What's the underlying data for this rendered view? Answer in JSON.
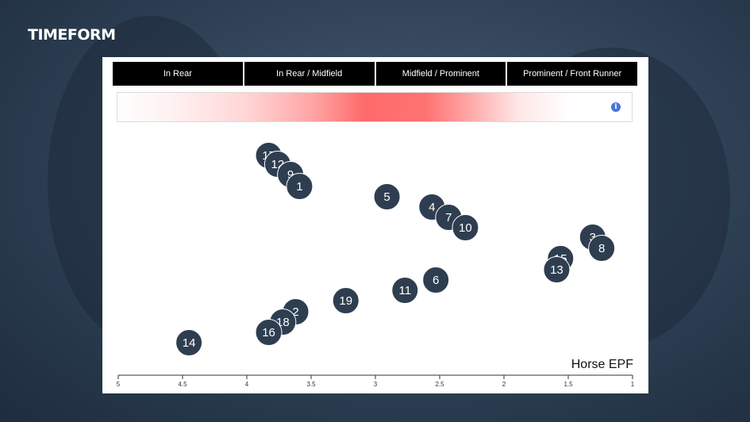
{
  "brand": {
    "logo_text": "TIMEFORM"
  },
  "header": {
    "sections": [
      "In Rear",
      "In Rear / Midfield",
      "Midfield / Prominent",
      "Prominent / Front Runner"
    ]
  },
  "info_icon_label": "i",
  "colors": {
    "marker": "#2e3e50",
    "header_bg": "#000000",
    "gradient": "#ff5a5a"
  },
  "chart_data": {
    "type": "scatter",
    "title": "",
    "xlabel": "Horse EPF",
    "ylabel": "",
    "x_reversed": true,
    "xlim": [
      5,
      1
    ],
    "x_ticks": [
      5,
      4.5,
      4,
      3.5,
      3,
      2.5,
      2,
      1.5,
      1
    ],
    "x_tick_labels": [
      "5",
      "4.5",
      "4",
      "3.5",
      "3",
      "2.5",
      "2",
      "1.5",
      "1"
    ],
    "grid": false,
    "points": [
      {
        "label": "17",
        "x": 3.83
      },
      {
        "label": "12",
        "x": 3.76
      },
      {
        "label": "9",
        "x": 3.66
      },
      {
        "label": "1",
        "x": 3.59
      },
      {
        "label": "5",
        "x": 2.91
      },
      {
        "label": "4",
        "x": 2.56
      },
      {
        "label": "7",
        "x": 2.43
      },
      {
        "label": "10",
        "x": 2.3
      },
      {
        "label": "3",
        "x": 1.31
      },
      {
        "label": "8",
        "x": 1.24
      },
      {
        "label": "15",
        "x": 1.56
      },
      {
        "label": "13",
        "x": 1.59
      },
      {
        "label": "6",
        "x": 2.53
      },
      {
        "label": "11",
        "x": 2.77
      },
      {
        "label": "19",
        "x": 3.23
      },
      {
        "label": "2",
        "x": 3.62
      },
      {
        "label": "18",
        "x": 3.72
      },
      {
        "label": "16",
        "x": 3.83
      },
      {
        "label": "14",
        "x": 4.45
      }
    ]
  }
}
